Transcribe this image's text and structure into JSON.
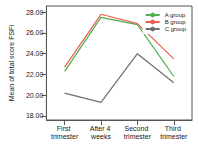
{
  "chart_data": {
    "type": "line",
    "y_label": "Mean of total score FSFI",
    "categories": [
      "First trimester",
      "After 4 weeks",
      "Second trimester",
      "Third trimester"
    ],
    "series": [
      {
        "name": "A group",
        "color": "#4caf50",
        "values": [
          22.3,
          27.5,
          26.8,
          21.8
        ]
      },
      {
        "name": "B group",
        "color": "#e8604c",
        "values": [
          22.7,
          27.8,
          26.9,
          23.5
        ]
      },
      {
        "name": "C group",
        "color": "#6e6e6e",
        "values": [
          20.2,
          19.3,
          24.0,
          21.2
        ]
      }
    ],
    "ylim": [
      17.6,
      28.6
    ],
    "yticks": [
      {
        "value": 18,
        "label": "18.00"
      },
      {
        "value": 20,
        "label": "20.00"
      },
      {
        "value": 22,
        "label": "22.00"
      },
      {
        "value": 24,
        "label": "24.00"
      },
      {
        "value": 26,
        "label": "26.00"
      },
      {
        "value": 28,
        "label": "28.00"
      }
    ],
    "grid": false,
    "legend": "upper right"
  }
}
